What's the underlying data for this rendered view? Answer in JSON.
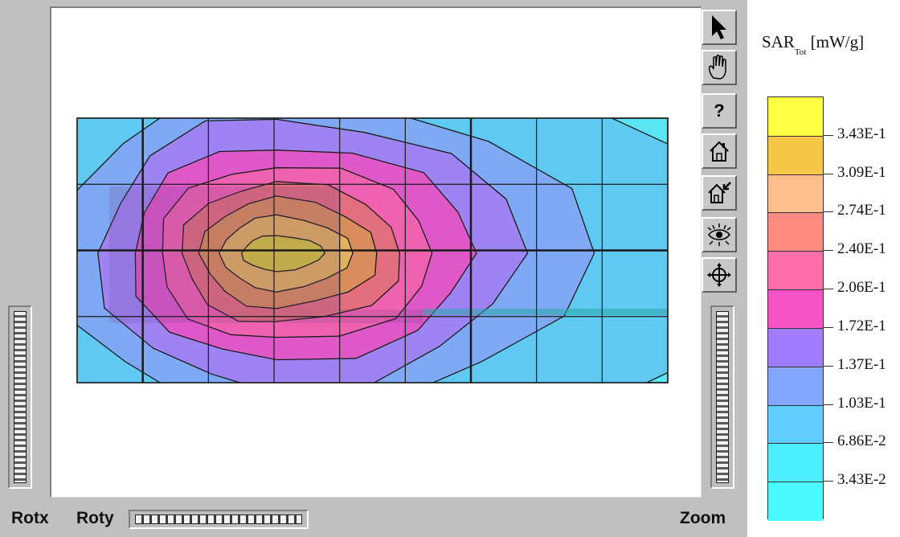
{
  "viewer": {
    "labels": {
      "rotx": "Rotx",
      "roty": "Roty",
      "zoom": "Zoom"
    },
    "toolbar": [
      {
        "name": "pointer-icon"
      },
      {
        "name": "hand-pan-icon"
      },
      {
        "name": "help-icon",
        "glyph": "?"
      },
      {
        "name": "home-icon"
      },
      {
        "name": "home-set-icon"
      },
      {
        "name": "view-eye-icon"
      },
      {
        "name": "center-crosshair-icon"
      }
    ]
  },
  "legend": {
    "title_main": "SAR",
    "title_sub": "Tot",
    "title_unit": "[mW/g]",
    "colors": [
      "#ffff44",
      "#f5c84a",
      "#ffbe8e",
      "#ff8c82",
      "#ff6ea8",
      "#f454c6",
      "#a07cff",
      "#84a6ff",
      "#60ccff",
      "#4ceeff",
      "#4cfaff"
    ],
    "levels": [
      "3.43E-1",
      "3.09E-1",
      "2.74E-1",
      "2.40E-1",
      "2.06E-1",
      "1.72E-1",
      "1.37E-1",
      "1.03E-1",
      "6.86E-2",
      "3.43E-2"
    ]
  },
  "contour": {
    "grid_columns": 9,
    "grid_rows": 4,
    "colors": {
      "background": "#59e6f2",
      "ring_1": "#5fc9f2",
      "ring_2": "#7fa9f5",
      "ring_3": "#9e84f3",
      "ring_4": "#df58c8",
      "ring_5": "#ef62b0",
      "ring_6": "#e36e7e",
      "ring_7": "#d98c5c",
      "ring_8": "#e2b05e",
      "peak": "#d6c43e",
      "lines": "#1a1a1a"
    }
  }
}
